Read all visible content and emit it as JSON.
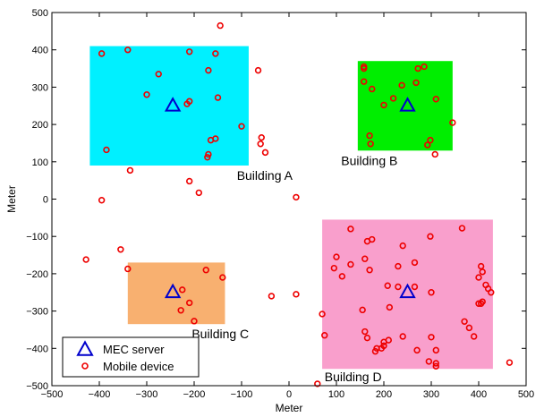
{
  "chart_data": {
    "type": "scatter",
    "title": "",
    "xlabel": "Meter",
    "ylabel": "Meter",
    "xlim": [
      -500,
      500
    ],
    "ylim": [
      -500,
      500
    ],
    "xticks": [
      "−500",
      "−400",
      "−300",
      "−200",
      "−100",
      "0",
      "100",
      "200",
      "300",
      "400",
      "500"
    ],
    "yticks": [
      "500",
      "400",
      "300",
      "200",
      "100",
      "0",
      "−100",
      "−200",
      "−300",
      "−400",
      "−500"
    ],
    "grid": false,
    "legend_position": "bottom-left",
    "regions": [
      {
        "label": "Building A",
        "x": [
          -420,
          -85
        ],
        "y": [
          90,
          410
        ],
        "color": "#00f0ff"
      },
      {
        "label": "Building B",
        "x": [
          145,
          345
        ],
        "y": [
          130,
          370
        ],
        "color": "#00ee00"
      },
      {
        "label": "Building C",
        "x": [
          -340,
          -135
        ],
        "y": [
          -335,
          -170
        ],
        "color": "#f8b070"
      },
      {
        "label": "Building D",
        "x": [
          70,
          430
        ],
        "y": [
          -455,
          -55
        ],
        "color": "#f99fcc"
      }
    ],
    "series": [
      {
        "name": "MEC server",
        "marker": "triangle",
        "color": "#0000cc",
        "points": [
          [
            -245,
            250
          ],
          [
            250,
            250
          ],
          [
            -245,
            -250
          ],
          [
            250,
            -250
          ]
        ]
      },
      {
        "name": "Mobile device",
        "marker": "circle",
        "color": "#ee0000",
        "points": [
          [
            -395,
            390
          ],
          [
            -340,
            400
          ],
          [
            -275,
            335
          ],
          [
            -210,
            395
          ],
          [
            -155,
            390
          ],
          [
            -170,
            345
          ],
          [
            -145,
            465
          ],
          [
            -65,
            345
          ],
          [
            -300,
            280
          ],
          [
            -150,
            272
          ],
          [
            -210,
            262
          ],
          [
            -215,
            255
          ],
          [
            -100,
            195
          ],
          [
            -58,
            165
          ],
          [
            -60,
            148
          ],
          [
            -50,
            125
          ],
          [
            -385,
            132
          ],
          [
            -165,
            158
          ],
          [
            -155,
            162
          ],
          [
            -170,
            120
          ],
          [
            -172,
            112
          ],
          [
            -335,
            77
          ],
          [
            -210,
            48
          ],
          [
            -190,
            17
          ],
          [
            -395,
            -3
          ],
          [
            15,
            5
          ],
          [
            -428,
            -162
          ],
          [
            -355,
            -135
          ],
          [
            -340,
            -187
          ],
          [
            -175,
            -190
          ],
          [
            -140,
            -210
          ],
          [
            -225,
            -243
          ],
          [
            -210,
            -278
          ],
          [
            -228,
            -298
          ],
          [
            -200,
            -327
          ],
          [
            -37,
            -260
          ],
          [
            15,
            -255
          ],
          [
            60,
            -495
          ],
          [
            158,
            355
          ],
          [
            158,
            350
          ],
          [
            158,
            315
          ],
          [
            175,
            295
          ],
          [
            170,
            170
          ],
          [
            172,
            148
          ],
          [
            200,
            252
          ],
          [
            220,
            270
          ],
          [
            238,
            305
          ],
          [
            268,
            312
          ],
          [
            272,
            350
          ],
          [
            285,
            355
          ],
          [
            310,
            268
          ],
          [
            345,
            205
          ],
          [
            298,
            158
          ],
          [
            292,
            145
          ],
          [
            308,
            120
          ],
          [
            130,
            -80
          ],
          [
            165,
            -113
          ],
          [
            175,
            -108
          ],
          [
            240,
            -125
          ],
          [
            298,
            -100
          ],
          [
            365,
            -78
          ],
          [
            100,
            -155
          ],
          [
            160,
            -160
          ],
          [
            170,
            -190
          ],
          [
            130,
            -175
          ],
          [
            95,
            -185
          ],
          [
            265,
            -170
          ],
          [
            230,
            -180
          ],
          [
            112,
            -207
          ],
          [
            208,
            -232
          ],
          [
            230,
            -235
          ],
          [
            265,
            -235
          ],
          [
            300,
            -250
          ],
          [
            405,
            -180
          ],
          [
            408,
            -195
          ],
          [
            400,
            -210
          ],
          [
            415,
            -230
          ],
          [
            420,
            -240
          ],
          [
            426,
            -250
          ],
          [
            408,
            -275
          ],
          [
            400,
            -280
          ],
          [
            405,
            -280
          ],
          [
            212,
            -290
          ],
          [
            155,
            -297
          ],
          [
            160,
            -355
          ],
          [
            70,
            -308
          ],
          [
            75,
            -365
          ],
          [
            165,
            -372
          ],
          [
            210,
            -378
          ],
          [
            240,
            -368
          ],
          [
            200,
            -383
          ],
          [
            200,
            -393
          ],
          [
            195,
            -400
          ],
          [
            185,
            -400
          ],
          [
            182,
            -408
          ],
          [
            270,
            -405
          ],
          [
            300,
            -370
          ],
          [
            310,
            -405
          ],
          [
            295,
            -435
          ],
          [
            310,
            -440
          ],
          [
            310,
            -448
          ],
          [
            370,
            -328
          ],
          [
            380,
            -345
          ],
          [
            390,
            -368
          ],
          [
            465,
            -438
          ]
        ]
      }
    ]
  }
}
